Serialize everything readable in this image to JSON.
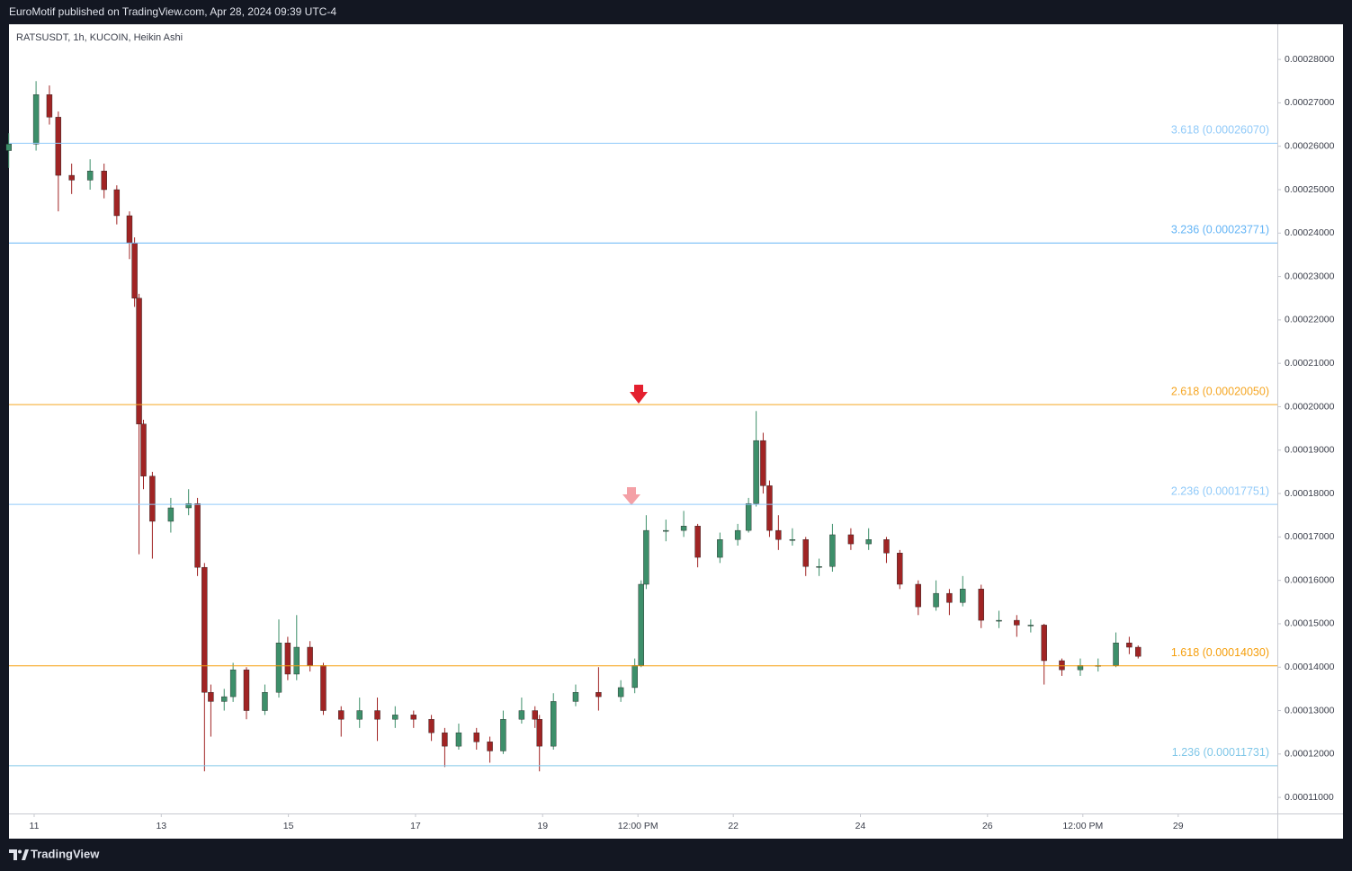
{
  "header": {
    "text": "EuroMotif published on TradingView.com, Apr 28, 2024 09:39 UTC-4"
  },
  "footer": {
    "brand": "TradingView"
  },
  "chart_data": {
    "type": "candlestick",
    "title": "RATSUSDT, 1h, KUCOIN, Heikin Ashi",
    "up_color": "#3d8f6a",
    "down_color": "#a02424",
    "xlim": [
      10.604,
      30.56
    ],
    "xticks": [
      11,
      13,
      15,
      17,
      19,
      {
        "value": 20.5,
        "label": "12:00 PM"
      },
      22,
      24,
      26,
      {
        "value": 27.5,
        "label": "12:00 PM"
      },
      29
    ],
    "ylim": [
      0.0001063,
      0.0002881
    ],
    "yticks": [
      {
        "value": 0.00011,
        "label": "0.00011000"
      },
      {
        "value": 0.00012,
        "label": "0.00012000"
      },
      {
        "value": 0.00013,
        "label": "0.00013000"
      },
      {
        "value": 0.00014,
        "label": "0.00014000"
      },
      {
        "value": 0.00015,
        "label": "0.00015000"
      },
      {
        "value": 0.00016,
        "label": "0.00016000"
      },
      {
        "value": 0.00017,
        "label": "0.00017000"
      },
      {
        "value": 0.00018,
        "label": "0.00018000"
      },
      {
        "value": 0.00019,
        "label": "0.00019000"
      },
      {
        "value": 0.0002,
        "label": "0.00020000"
      },
      {
        "value": 0.00021,
        "label": "0.00021000"
      },
      {
        "value": 0.00022,
        "label": "0.00022000"
      },
      {
        "value": 0.00023,
        "label": "0.00023000"
      },
      {
        "value": 0.00024,
        "label": "0.00024000"
      },
      {
        "value": 0.00025,
        "label": "0.00025000"
      },
      {
        "value": 0.00026,
        "label": "0.00026000"
      },
      {
        "value": 0.00027,
        "label": "0.00027000"
      },
      {
        "value": 0.00028,
        "label": "0.00028000"
      }
    ],
    "fib_levels": [
      {
        "label": "3.618 (0.00026070)",
        "value": 0.0002607,
        "color": "#90caf9"
      },
      {
        "label": "3.236 (0.00023771)",
        "value": 0.00023771,
        "color": "#64b5f6"
      },
      {
        "label": "2.618 (0.00020050)",
        "value": 0.0002005,
        "color": "#f5a623"
      },
      {
        "label": "2.236 (0.00017751)",
        "value": 0.00017751,
        "color": "#90caf9"
      },
      {
        "label": "1.618 (0.00014030)",
        "value": 0.0001403,
        "color": "#f59e0b"
      },
      {
        "label": "1.236 (0.00011731)",
        "value": 0.00011731,
        "color": "#80c7e8"
      }
    ],
    "candles": [
      {
        "x": 10.6,
        "open": 0.000259,
        "high": 0.000263,
        "low": 0.000255,
        "close": 0.0002605
      },
      {
        "x": 11.03,
        "open": 0.0002605,
        "high": 0.000275,
        "low": 0.000259,
        "close": 0.0002719
      },
      {
        "x": 11.24,
        "open": 0.0002719,
        "high": 0.000274,
        "low": 0.000265,
        "close": 0.0002667
      },
      {
        "x": 11.38,
        "open": 0.0002667,
        "high": 0.000268,
        "low": 0.000245,
        "close": 0.0002533
      },
      {
        "x": 11.59,
        "open": 0.0002533,
        "high": 0.000256,
        "low": 0.000249,
        "close": 0.0002522
      },
      {
        "x": 11.88,
        "open": 0.0002522,
        "high": 0.000257,
        "low": 0.00025,
        "close": 0.0002543
      },
      {
        "x": 12.1,
        "open": 0.0002543,
        "high": 0.000256,
        "low": 0.000248,
        "close": 0.00025
      },
      {
        "x": 12.3,
        "open": 0.00025,
        "high": 0.000251,
        "low": 0.000242,
        "close": 0.000244
      },
      {
        "x": 12.5,
        "open": 0.000244,
        "high": 0.000245,
        "low": 0.000234,
        "close": 0.0002377
      },
      {
        "x": 12.58,
        "open": 0.0002377,
        "high": 0.000239,
        "low": 0.000223,
        "close": 0.000225
      },
      {
        "x": 12.65,
        "open": 0.000225,
        "high": 0.000226,
        "low": 0.000166,
        "close": 0.000196
      },
      {
        "x": 12.72,
        "open": 0.000196,
        "high": 0.000197,
        "low": 0.000181,
        "close": 0.000184
      },
      {
        "x": 12.86,
        "open": 0.000184,
        "high": 0.000185,
        "low": 0.000165,
        "close": 0.0001736
      },
      {
        "x": 13.15,
        "open": 0.0001736,
        "high": 0.000179,
        "low": 0.000171,
        "close": 0.0001767
      },
      {
        "x": 13.43,
        "open": 0.0001767,
        "high": 0.000181,
        "low": 0.000175,
        "close": 0.0001777
      },
      {
        "x": 13.57,
        "open": 0.0001777,
        "high": 0.000179,
        "low": 0.000161,
        "close": 0.000163
      },
      {
        "x": 13.68,
        "open": 0.000163,
        "high": 0.000164,
        "low": 0.000116,
        "close": 0.0001342
      },
      {
        "x": 13.78,
        "open": 0.0001342,
        "high": 0.000136,
        "low": 0.000124,
        "close": 0.0001321
      },
      {
        "x": 13.99,
        "open": 0.0001321,
        "high": 0.000135,
        "low": 0.00013,
        "close": 0.0001332
      },
      {
        "x": 14.13,
        "open": 0.0001332,
        "high": 0.000141,
        "low": 0.000132,
        "close": 0.0001394
      },
      {
        "x": 14.34,
        "open": 0.0001394,
        "high": 0.00014,
        "low": 0.000128,
        "close": 0.00013
      },
      {
        "x": 14.63,
        "open": 0.00013,
        "high": 0.000136,
        "low": 0.000129,
        "close": 0.0001342
      },
      {
        "x": 14.85,
        "open": 0.0001342,
        "high": 0.000151,
        "low": 0.000133,
        "close": 0.0001456
      },
      {
        "x": 14.99,
        "open": 0.0001456,
        "high": 0.000147,
        "low": 0.000137,
        "close": 0.0001384
      },
      {
        "x": 15.13,
        "open": 0.0001384,
        "high": 0.000152,
        "low": 0.000137,
        "close": 0.0001446
      },
      {
        "x": 15.34,
        "open": 0.0001446,
        "high": 0.000146,
        "low": 0.000139,
        "close": 0.0001404
      },
      {
        "x": 15.55,
        "open": 0.0001404,
        "high": 0.000141,
        "low": 0.000129,
        "close": 0.00013
      },
      {
        "x": 15.83,
        "open": 0.00013,
        "high": 0.000131,
        "low": 0.000124,
        "close": 0.000128
      },
      {
        "x": 16.12,
        "open": 0.000128,
        "high": 0.000133,
        "low": 0.000126,
        "close": 0.00013
      },
      {
        "x": 16.4,
        "open": 0.00013,
        "high": 0.000133,
        "low": 0.000123,
        "close": 0.000128
      },
      {
        "x": 16.68,
        "open": 0.000128,
        "high": 0.000131,
        "low": 0.000126,
        "close": 0.000129
      },
      {
        "x": 16.97,
        "open": 0.000129,
        "high": 0.00013,
        "low": 0.000126,
        "close": 0.000128
      },
      {
        "x": 17.25,
        "open": 0.000128,
        "high": 0.000129,
        "low": 0.000123,
        "close": 0.0001249
      },
      {
        "x": 17.46,
        "open": 0.0001249,
        "high": 0.000126,
        "low": 0.000117,
        "close": 0.0001218
      },
      {
        "x": 17.68,
        "open": 0.0001218,
        "high": 0.000127,
        "low": 0.000121,
        "close": 0.0001249
      },
      {
        "x": 17.96,
        "open": 0.0001249,
        "high": 0.000126,
        "low": 0.000121,
        "close": 0.0001228
      },
      {
        "x": 18.17,
        "open": 0.0001228,
        "high": 0.000124,
        "low": 0.000118,
        "close": 0.0001207
      },
      {
        "x": 18.38,
        "open": 0.0001207,
        "high": 0.00013,
        "low": 0.00012,
        "close": 0.000128
      },
      {
        "x": 18.67,
        "open": 0.000128,
        "high": 0.000133,
        "low": 0.000127,
        "close": 0.00013
      },
      {
        "x": 18.88,
        "open": 0.00013,
        "high": 0.000131,
        "low": 0.000126,
        "close": 0.000128
      },
      {
        "x": 18.95,
        "open": 0.000128,
        "high": 0.000129,
        "low": 0.000116,
        "close": 0.0001218
      },
      {
        "x": 19.17,
        "open": 0.0001218,
        "high": 0.000134,
        "low": 0.000121,
        "close": 0.0001321
      },
      {
        "x": 19.52,
        "open": 0.0001321,
        "high": 0.000136,
        "low": 0.000131,
        "close": 0.0001342
      },
      {
        "x": 19.88,
        "open": 0.0001342,
        "high": 0.00014,
        "low": 0.00013,
        "close": 0.0001332
      },
      {
        "x": 20.23,
        "open": 0.0001332,
        "high": 0.000137,
        "low": 0.000132,
        "close": 0.0001353
      },
      {
        "x": 20.45,
        "open": 0.0001353,
        "high": 0.000142,
        "low": 0.000134,
        "close": 0.0001404
      },
      {
        "x": 20.55,
        "open": 0.0001404,
        "high": 0.00016,
        "low": 0.00014,
        "close": 0.0001591
      },
      {
        "x": 20.63,
        "open": 0.0001591,
        "high": 0.000175,
        "low": 0.000158,
        "close": 0.0001715
      },
      {
        "x": 20.94,
        "open": 0.0001715,
        "high": 0.000174,
        "low": 0.000169,
        "close": 0.0001715
      },
      {
        "x": 21.22,
        "open": 0.0001715,
        "high": 0.000176,
        "low": 0.00017,
        "close": 0.0001725
      },
      {
        "x": 21.44,
        "open": 0.0001725,
        "high": 0.000173,
        "low": 0.000163,
        "close": 0.0001653
      },
      {
        "x": 21.79,
        "open": 0.0001653,
        "high": 0.000171,
        "low": 0.000164,
        "close": 0.0001694
      },
      {
        "x": 22.07,
        "open": 0.0001694,
        "high": 0.000173,
        "low": 0.000168,
        "close": 0.0001715
      },
      {
        "x": 22.24,
        "open": 0.0001715,
        "high": 0.000179,
        "low": 0.000171,
        "close": 0.0001777
      },
      {
        "x": 22.36,
        "open": 0.0001777,
        "high": 0.000199,
        "low": 0.000177,
        "close": 0.0001922
      },
      {
        "x": 22.47,
        "open": 0.0001922,
        "high": 0.000194,
        "low": 0.00018,
        "close": 0.0001818
      },
      {
        "x": 22.57,
        "open": 0.0001818,
        "high": 0.000183,
        "low": 0.00017,
        "close": 0.0001715
      },
      {
        "x": 22.71,
        "open": 0.0001715,
        "high": 0.000175,
        "low": 0.000167,
        "close": 0.0001694
      },
      {
        "x": 22.93,
        "open": 0.0001694,
        "high": 0.000172,
        "low": 0.000168,
        "close": 0.0001694
      },
      {
        "x": 23.14,
        "open": 0.0001694,
        "high": 0.00017,
        "low": 0.000161,
        "close": 0.0001632
      },
      {
        "x": 23.35,
        "open": 0.0001632,
        "high": 0.000165,
        "low": 0.000161,
        "close": 0.0001632
      },
      {
        "x": 23.56,
        "open": 0.0001632,
        "high": 0.000173,
        "low": 0.000162,
        "close": 0.0001705
      },
      {
        "x": 23.85,
        "open": 0.0001705,
        "high": 0.000172,
        "low": 0.000167,
        "close": 0.0001684
      },
      {
        "x": 24.13,
        "open": 0.0001684,
        "high": 0.000172,
        "low": 0.000167,
        "close": 0.0001694
      },
      {
        "x": 24.41,
        "open": 0.0001694,
        "high": 0.00017,
        "low": 0.000164,
        "close": 0.0001663
      },
      {
        "x": 24.62,
        "open": 0.0001663,
        "high": 0.000167,
        "low": 0.000158,
        "close": 0.0001591
      },
      {
        "x": 24.91,
        "open": 0.0001591,
        "high": 0.00016,
        "low": 0.000152,
        "close": 0.0001539
      },
      {
        "x": 25.19,
        "open": 0.0001539,
        "high": 0.00016,
        "low": 0.000153,
        "close": 0.000157
      },
      {
        "x": 25.4,
        "open": 0.000157,
        "high": 0.000158,
        "low": 0.000152,
        "close": 0.0001549
      },
      {
        "x": 25.61,
        "open": 0.0001549,
        "high": 0.000161,
        "low": 0.000154,
        "close": 0.000158
      },
      {
        "x": 25.9,
        "open": 0.000158,
        "high": 0.000159,
        "low": 0.000149,
        "close": 0.0001508
      },
      {
        "x": 26.18,
        "open": 0.0001508,
        "high": 0.000153,
        "low": 0.000149,
        "close": 0.0001508
      },
      {
        "x": 26.46,
        "open": 0.0001508,
        "high": 0.000152,
        "low": 0.000147,
        "close": 0.0001497
      },
      {
        "x": 26.68,
        "open": 0.0001497,
        "high": 0.000151,
        "low": 0.000148,
        "close": 0.0001497
      },
      {
        "x": 26.89,
        "open": 0.0001497,
        "high": 0.00015,
        "low": 0.000136,
        "close": 0.0001415
      },
      {
        "x": 27.17,
        "open": 0.0001415,
        "high": 0.000142,
        "low": 0.000138,
        "close": 0.0001394
      },
      {
        "x": 27.46,
        "open": 0.0001394,
        "high": 0.000142,
        "low": 0.000138,
        "close": 0.0001404
      },
      {
        "x": 27.74,
        "open": 0.0001404,
        "high": 0.000142,
        "low": 0.000139,
        "close": 0.0001404
      },
      {
        "x": 28.02,
        "open": 0.0001404,
        "high": 0.000148,
        "low": 0.00014,
        "close": 0.0001456
      },
      {
        "x": 28.23,
        "open": 0.0001456,
        "high": 0.000147,
        "low": 0.000143,
        "close": 0.0001446
      },
      {
        "x": 28.37,
        "open": 0.0001446,
        "high": 0.000145,
        "low": 0.000142,
        "close": 0.0001425
      }
    ]
  }
}
